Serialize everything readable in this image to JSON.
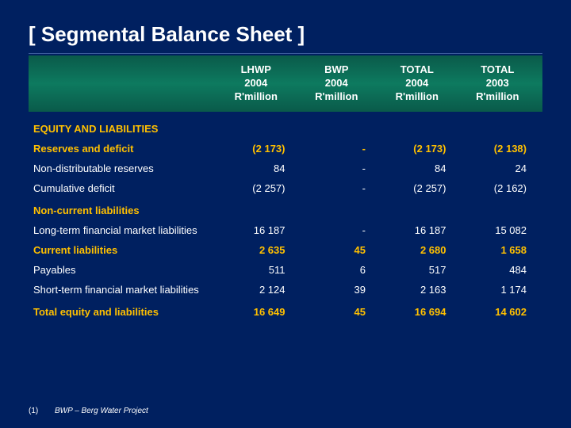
{
  "title": "[ Segmental Balance Sheet ]",
  "columns": [
    {
      "line1": "LHWP",
      "line2": "2004",
      "line3": "R'million"
    },
    {
      "line1": "BWP",
      "line2": "2004",
      "line3": "R'million"
    },
    {
      "line1": "TOTAL",
      "line2": "2004",
      "line3": "R'million"
    },
    {
      "line1": "TOTAL",
      "line2": "2003",
      "line3": "R'million"
    }
  ],
  "sections": {
    "equity_header": "EQUITY AND LIABILITIES",
    "reserves_deficit": {
      "label": "Reserves and deficit",
      "vals": [
        "(2 173)",
        "-",
        "(2 173)",
        "(2 138)"
      ]
    },
    "non_dist_reserves": {
      "label": "Non-distributable reserves",
      "vals": [
        "84",
        "-",
        "84",
        "24"
      ]
    },
    "cumulative_deficit": {
      "label": "Cumulative deficit",
      "vals": [
        "(2 257)",
        "-",
        "(2 257)",
        "(2 162)"
      ]
    },
    "non_current_header": "Non-current liabilities",
    "long_term": {
      "label": "Long-term financial market liabilities",
      "vals": [
        "16 187",
        "-",
        "16 187",
        "15 082"
      ]
    },
    "current_liabilities": {
      "label": "Current liabilities",
      "vals": [
        "2 635",
        "45",
        "2 680",
        "1 658"
      ]
    },
    "payables": {
      "label": "Payables",
      "vals": [
        "511",
        "6",
        "517",
        "484"
      ]
    },
    "short_term": {
      "label": "Short-term financial market liabilities",
      "vals": [
        "2 124",
        "39",
        "2 163",
        "1 174"
      ]
    },
    "total": {
      "label": "Total equity and liabilities",
      "vals": [
        "16 649",
        "45",
        "16 694",
        "14 602"
      ]
    }
  },
  "footnote": {
    "num": "(1)",
    "text": "BWP – Berg Water Project"
  },
  "colors": {
    "background": "#002060",
    "yellow": "#ffc000",
    "white": "#ffffff",
    "band_start": "#0a5a4a",
    "band_mid": "#0d7a5f"
  },
  "fonts": {
    "title_size": 26,
    "body_size": 13,
    "footnote_size": 10
  }
}
